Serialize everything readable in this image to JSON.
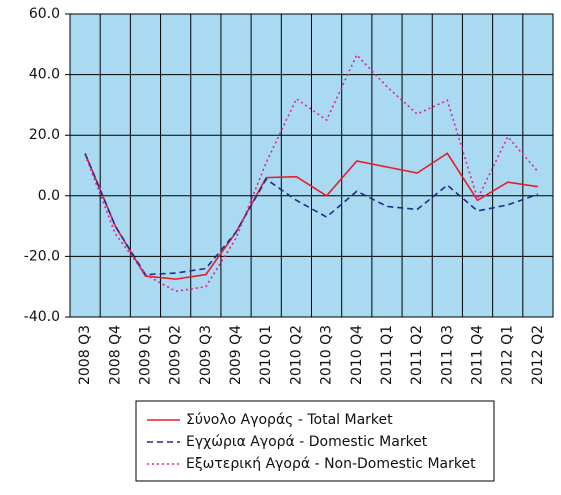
{
  "chart_data": {
    "type": "line",
    "categories": [
      "2008 Q3",
      "2008 Q4",
      "2009 Q1",
      "2009 Q2",
      "2009 Q3",
      "2009 Q4",
      "2010 Q1",
      "2010 Q2",
      "2010 Q3",
      "2010 Q4",
      "2011 Q1",
      "2011 Q2",
      "2011 Q3",
      "2011 Q4",
      "2012 Q1",
      "2012 Q2"
    ],
    "series": [
      {
        "name": "Σύνολο Αγοράς - Total Market",
        "color": "#e3202a",
        "dash": "solid",
        "values": [
          14,
          -10,
          -26.5,
          -27.5,
          -26,
          -12,
          6,
          6.3,
          0,
          11.5,
          9.5,
          7.5,
          14,
          -1.5,
          4.5,
          3
        ]
      },
      {
        "name": "Εγχώρια Αγορά - Domestic Market",
        "color": "#1f2d8a",
        "dash": "dashed",
        "values": [
          14,
          -10,
          -26,
          -25.5,
          -24,
          -12,
          5.5,
          -1.5,
          -7,
          1.5,
          -3.5,
          -4.5,
          3.5,
          -5,
          -3,
          0.5
        ]
      },
      {
        "name": "Εξωτερική Αγορά - Non-Domestic Market",
        "color": "#e0209a",
        "dash": "dotted",
        "values": [
          13.5,
          -12.5,
          -26,
          -31.5,
          -30,
          -14,
          11,
          32,
          25,
          46.5,
          36,
          27,
          31.5,
          -1,
          19.5,
          8
        ]
      }
    ],
    "ylim": [
      -40,
      60
    ],
    "yticks": [
      {
        "value": -40,
        "label": "-40.0"
      },
      {
        "value": -20,
        "label": "-20.0"
      },
      {
        "value": 0,
        "label": "0.0"
      },
      {
        "value": 20,
        "label": "20.0"
      },
      {
        "value": 40,
        "label": "40.0"
      },
      {
        "value": 60,
        "label": "60.0"
      }
    ],
    "grid": true,
    "background": "#a9daf2"
  }
}
